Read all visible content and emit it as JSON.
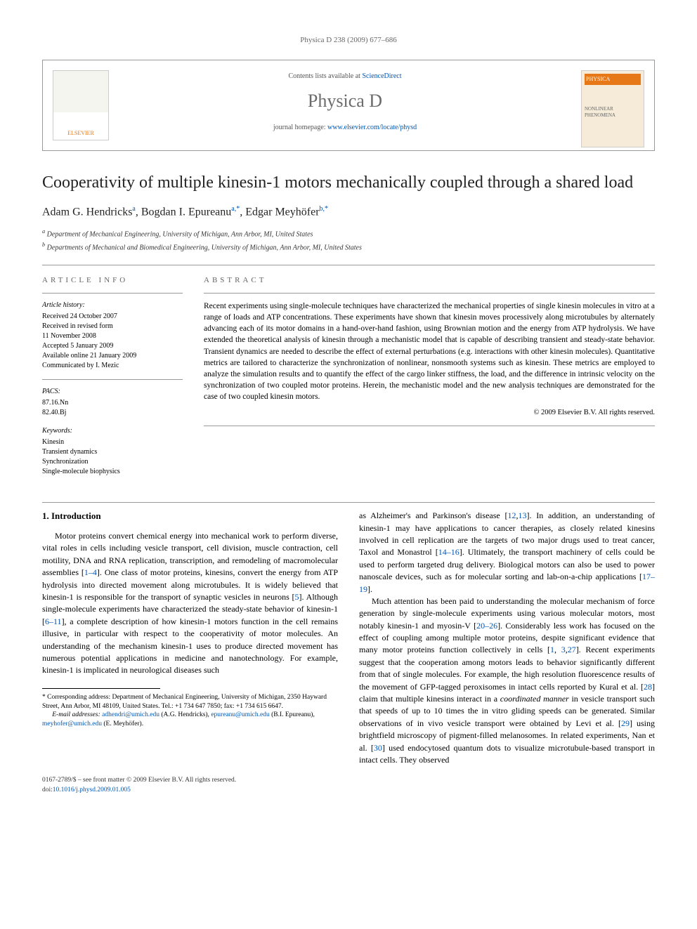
{
  "running_header": "Physica D 238 (2009) 677–686",
  "header": {
    "contents_prefix": "Contents lists available at ",
    "contents_link": "ScienceDirect",
    "journal_name": "Physica D",
    "homepage_prefix": "journal homepage: ",
    "homepage_link": "www.elsevier.com/locate/physd",
    "publisher_logo_label": "ELSEVIER",
    "cover_label": "PHYSICA",
    "cover_sub": "NONLINEAR PHENOMENA"
  },
  "title": "Cooperativity of multiple kinesin-1 motors mechanically coupled through a shared load",
  "authors_html_parts": {
    "a1_name": "Adam G. Hendricks",
    "a1_sup": "a",
    "a2_name": "Bogdan I. Epureanu",
    "a2_sup": "a,*",
    "a3_name": "Edgar Meyhöfer",
    "a3_sup": "b,*"
  },
  "affiliations": {
    "a": "Department of Mechanical Engineering, University of Michigan, Ann Arbor, MI, United States",
    "b": "Departments of Mechanical and Biomedical Engineering, University of Michigan, Ann Arbor, MI, United States"
  },
  "article_info": {
    "heading": "ARTICLE INFO",
    "history_title": "Article history:",
    "history": [
      "Received 24 October 2007",
      "Received in revised form",
      "11 November 2008",
      "Accepted 5 January 2009",
      "Available online 21 January 2009",
      "Communicated by I. Mezic"
    ],
    "pacs_title": "PACS:",
    "pacs": [
      "87.16.Nn",
      "82.40.Bj"
    ],
    "keywords_title": "Keywords:",
    "keywords": [
      "Kinesin",
      "Transient dynamics",
      "Synchronization",
      "Single-molecule biophysics"
    ]
  },
  "abstract": {
    "heading": "ABSTRACT",
    "text": "Recent experiments using single-molecule techniques have characterized the mechanical properties of single kinesin molecules in vitro at a range of loads and ATP concentrations. These experiments have shown that kinesin moves processively along microtubules by alternately advancing each of its motor domains in a hand-over-hand fashion, using Brownian motion and the energy from ATP hydrolysis. We have extended the theoretical analysis of kinesin through a mechanistic model that is capable of describing transient and steady-state behavior. Transient dynamics are needed to describe the effect of external perturbations (e.g. interactions with other kinesin molecules). Quantitative metrics are tailored to characterize the synchronization of nonlinear, nonsmooth systems such as kinesin. These metrics are employed to analyze the simulation results and to quantify the effect of the cargo linker stiffness, the load, and the difference in intrinsic velocity on the synchronization of two coupled motor proteins. Herein, the mechanistic model and the new analysis techniques are demonstrated for the case of two coupled kinesin motors.",
    "copyright": "© 2009 Elsevier B.V. All rights reserved."
  },
  "section1": {
    "heading": "1. Introduction",
    "p1_pre": "Motor proteins convert chemical energy into mechanical work to perform diverse, vital roles in cells including vesicle transport, cell division, muscle contraction, cell motility, DNA and RNA replication, transcription, and remodeling of macromolecular assemblies [",
    "p1_ref1": "1–4",
    "p1_mid1": "]. One class of motor proteins, kinesins, convert the energy from ATP hydrolysis into directed movement along microtubules. It is widely believed that kinesin-1 is responsible for the transport of synaptic vesicles in neurons [",
    "p1_ref2": "5",
    "p1_mid2": "]. Although single-molecule experiments have characterized the steady-state behavior of kinesin-1 [",
    "p1_ref3": "6–11",
    "p1_mid3": "], a complete description of how kinesin-1 motors function in the cell remains illusive, in particular with respect to the cooperativity of motor molecules. An understanding of the mechanism kinesin-1 uses to produce directed movement has numerous potential applications in medicine and nanotechnology. For example, kinesin-1 is implicated in neurological diseases such",
    "p2_pre": "as Alzheimer's and Parkinson's disease [",
    "p2_ref1": "12",
    "p2_comma1": ",",
    "p2_ref2": "13",
    "p2_mid1": "]. In addition, an understanding of kinesin-1 may have applications to cancer therapies, as closely related kinesins involved in cell replication are the targets of two major drugs used to treat cancer, Taxol and Monastrol [",
    "p2_ref3": "14–16",
    "p2_mid2": "]. Ultimately, the transport machinery of cells could be used to perform targeted drug delivery. Biological motors can also be used to power nanoscale devices, such as for molecular sorting and lab-on-a-chip applications [",
    "p2_ref4": "17–19",
    "p2_end": "].",
    "p3_pre": "Much attention has been paid to understanding the molecular mechanism of force generation by single-molecule experiments using various molecular motors, most notably kinesin-1 and myosin-V [",
    "p3_ref1": "20–26",
    "p3_mid1": "]. Considerably less work has focused on the effect of coupling among multiple motor proteins, despite significant evidence that many motor proteins function collectively in cells [",
    "p3_ref2": "1",
    "p3_comma1": ", ",
    "p3_ref3": "3",
    "p3_comma2": ",",
    "p3_ref4": "27",
    "p3_mid2": "]. Recent experiments suggest that the cooperation among motors leads to behavior significantly different from that of single molecules. For example, the high resolution fluorescence results of the movement of GFP-tagged peroxisomes in intact cells reported by Kural et al. [",
    "p3_ref5": "28",
    "p3_mid3": "] claim that multiple kinesins interact in a ",
    "p3_ital": "coordinated manner",
    "p3_mid4": " in vesicle transport such that speeds of up to 10 times the in vitro gliding speeds can be generated. Similar observations of in vivo vesicle transport were obtained by Levi et al. [",
    "p3_ref6": "29",
    "p3_mid5": "] using brightfield microscopy of pigment-filled melanosomes. In related experiments, Nan et al. [",
    "p3_ref7": "30",
    "p3_mid6": "] used endocytosed quantum dots to visualize microtubule-based transport in intact cells. They observed"
  },
  "footnote": {
    "corr_label": "*",
    "corr_text": " Corresponding address: Department of Mechanical Engineering, University of Michigan, 2350 Hayward Street, Ann Arbor, MI 48109, United States. Tel.: +1 734 647 7850; fax: +1 734 615 6647.",
    "email_label": "E-mail addresses: ",
    "email1": "adhendri@umich.edu",
    "email1_who": " (A.G. Hendricks), ",
    "email2": "epureanu@umich.edu",
    "email2_who": " (B.I. Epureanu), ",
    "email3": "meyhofer@umich.edu",
    "email3_who": " (E. Meyhöfer)."
  },
  "footer": {
    "line1": "0167-2789/$ – see front matter © 2009 Elsevier B.V. All rights reserved.",
    "doi_label": "doi:",
    "doi": "10.1016/j.physd.2009.01.005"
  }
}
